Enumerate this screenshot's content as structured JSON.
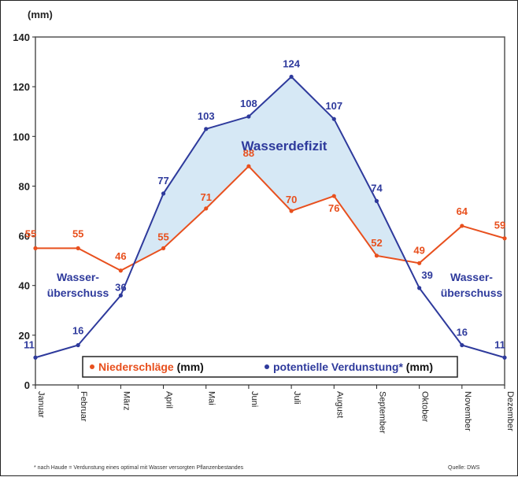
{
  "chart_data": {
    "type": "line",
    "unit_label": "(mm)",
    "categories": [
      "Januar",
      "Februar",
      "März",
      "April",
      "Mai",
      "Juni",
      "Juli",
      "August",
      "September",
      "Oktober",
      "November",
      "Dezember"
    ],
    "ylim": [
      0,
      140
    ],
    "yticks": [
      0,
      20,
      40,
      60,
      80,
      100,
      120,
      140
    ],
    "grid": false,
    "series": [
      {
        "name": "Niederschläge",
        "unit": "(mm)",
        "color": "#e8501e",
        "values": [
          55,
          55,
          46,
          55,
          71,
          88,
          70,
          76,
          52,
          49,
          64,
          59
        ],
        "labels": [
          "55",
          "55",
          "46",
          "55",
          "71",
          "88",
          "70",
          "76",
          "52",
          "49",
          "64",
          "59"
        ]
      },
      {
        "name": "potentielle Verdunstung*",
        "unit": "(mm)",
        "color": "#2e3a9c",
        "values": [
          11,
          16,
          36,
          77,
          103,
          108,
          124,
          107,
          74,
          39,
          16,
          11
        ],
        "labels": [
          "11",
          "16",
          "36",
          "77",
          "103",
          "108",
          "124",
          "107",
          "74",
          "39",
          "16",
          "11"
        ]
      }
    ],
    "annotations": {
      "deficit": "Wasserdefizit",
      "surplus_left": [
        "Wasser-",
        "überschuss"
      ],
      "surplus_right": [
        "Wasser-",
        "überschuss"
      ]
    },
    "legend_position": "bottom",
    "deficit_fill": "#d6e8f5"
  },
  "footnote": "* nach Haude = Verdunstung eines optimal mit Wasser versorgten Pflanzenbestandes",
  "source": "Quelle: DWS"
}
